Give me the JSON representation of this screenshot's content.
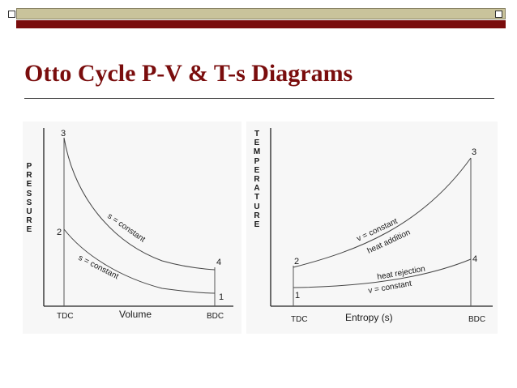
{
  "slide": {
    "title": "Otto Cycle P-V & T-s Diagrams",
    "colors": {
      "accent": "#7a0d0d",
      "band": "#c9c39b"
    }
  },
  "pv_diagram": {
    "y_axis_label": "PRESSURE",
    "x_axis_label": "Volume",
    "x_ticks": [
      "TDC",
      "BDC"
    ],
    "points": [
      "1",
      "2",
      "3",
      "4"
    ],
    "curve_upper": "s = constant",
    "curve_lower": "s = constant"
  },
  "ts_diagram": {
    "y_axis_label": "TEMPERATURE",
    "x_axis_label": "Entropy (s)",
    "x_ticks": [
      "TDC",
      "BDC"
    ],
    "points": [
      "1",
      "2",
      "3",
      "4"
    ],
    "upper_curve_line1": "v = constant",
    "upper_curve_line2": "heat addition",
    "lower_curve_line1": "heat rejection",
    "lower_curve_line2": "v = constant"
  }
}
